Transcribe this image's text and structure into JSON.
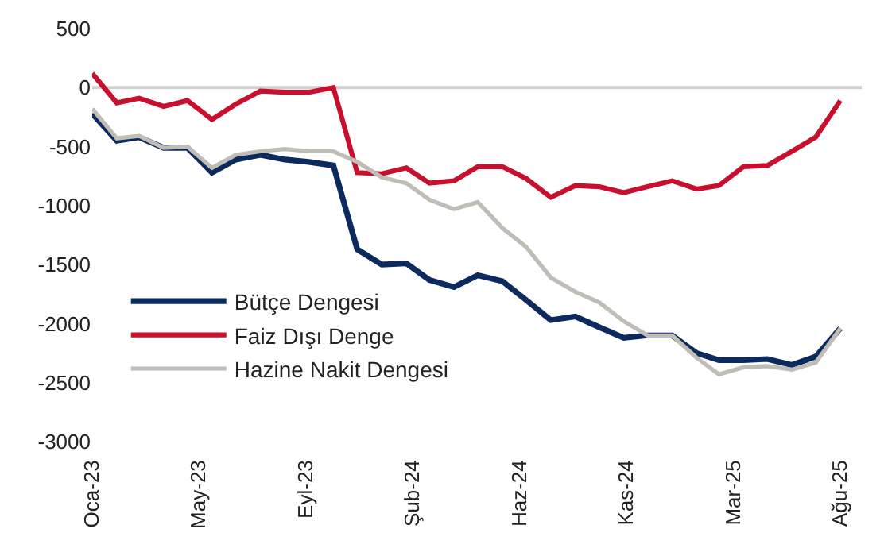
{
  "chart_data": {
    "type": "line",
    "x": [
      "2023-01",
      "2023-02",
      "2023-03",
      "2023-04",
      "2023-05",
      "2023-06",
      "2023-07",
      "2023-08",
      "2023-09",
      "2023-10",
      "2023-11",
      "2023-12",
      "2024-01",
      "2024-02",
      "2024-03",
      "2024-04",
      "2024-05",
      "2024-06",
      "2024-07",
      "2024-08",
      "2024-09",
      "2024-10",
      "2024-11",
      "2024-12",
      "2025-01",
      "2025-02",
      "2025-03",
      "2025-04",
      "2025-05",
      "2025-06",
      "2025-07",
      "2025-08"
    ],
    "series": [
      {
        "name": "Bütçe Dengesi",
        "color": "#0d2a5e",
        "values": [
          -220,
          -450,
          -420,
          -510,
          -510,
          -720,
          -610,
          -570,
          -610,
          -630,
          -660,
          -1370,
          -1500,
          -1490,
          -1630,
          -1690,
          -1590,
          -1640,
          -1800,
          -1970,
          -1940,
          -2030,
          -2120,
          -2100,
          -2100,
          -2250,
          -2310,
          -2310,
          -2300,
          -2350,
          -2280,
          -2040
        ]
      },
      {
        "name": "Faiz Dışı Denge",
        "color": "#c8102e",
        "values": [
          120,
          -130,
          -90,
          -160,
          -110,
          -270,
          -140,
          -30,
          -40,
          -40,
          0,
          -720,
          -730,
          -680,
          -810,
          -790,
          -670,
          -670,
          -770,
          -930,
          -830,
          -840,
          -890,
          -840,
          -790,
          -860,
          -830,
          -670,
          -660,
          -540,
          -420,
          -110
        ]
      },
      {
        "name": "Hazine Nakit Dengesi",
        "color": "#c0bcb6",
        "values": [
          -180,
          -430,
          -410,
          -510,
          -500,
          -680,
          -570,
          -540,
          -520,
          -540,
          -540,
          -630,
          -760,
          -810,
          -950,
          -1030,
          -970,
          -1190,
          -1350,
          -1610,
          -1730,
          -1820,
          -1980,
          -2100,
          -2100,
          -2290,
          -2430,
          -2370,
          -2360,
          -2390,
          -2330,
          -2040
        ]
      }
    ],
    "xlim": [
      "2023-01-01",
      "2025-08-28"
    ],
    "xticks": [
      {
        "value": "2023-01-01",
        "label": "Oca-23"
      },
      {
        "value": "2023-05-15",
        "label": "May-23"
      },
      {
        "value": "2023-09-27",
        "label": "Eyl-23"
      },
      {
        "value": "2024-02-08",
        "label": "Şub-24"
      },
      {
        "value": "2024-06-23",
        "label": "Haz-24"
      },
      {
        "value": "2024-11-04",
        "label": "Kas-24"
      },
      {
        "value": "2025-03-19",
        "label": "Mar-25"
      },
      {
        "value": "2025-08-01",
        "label": "Ağu-25"
      }
    ],
    "ylim": [
      -3000,
      500
    ],
    "yticks": [
      -3000,
      -2500,
      -2000,
      -1500,
      -1000,
      -500,
      0,
      500
    ],
    "grid": false,
    "ref_lines": [
      {
        "axis": "y",
        "value": 0,
        "color": "#d0d0d0"
      }
    ],
    "legend": "bottom left",
    "marker": "none",
    "line_style": "solid"
  }
}
